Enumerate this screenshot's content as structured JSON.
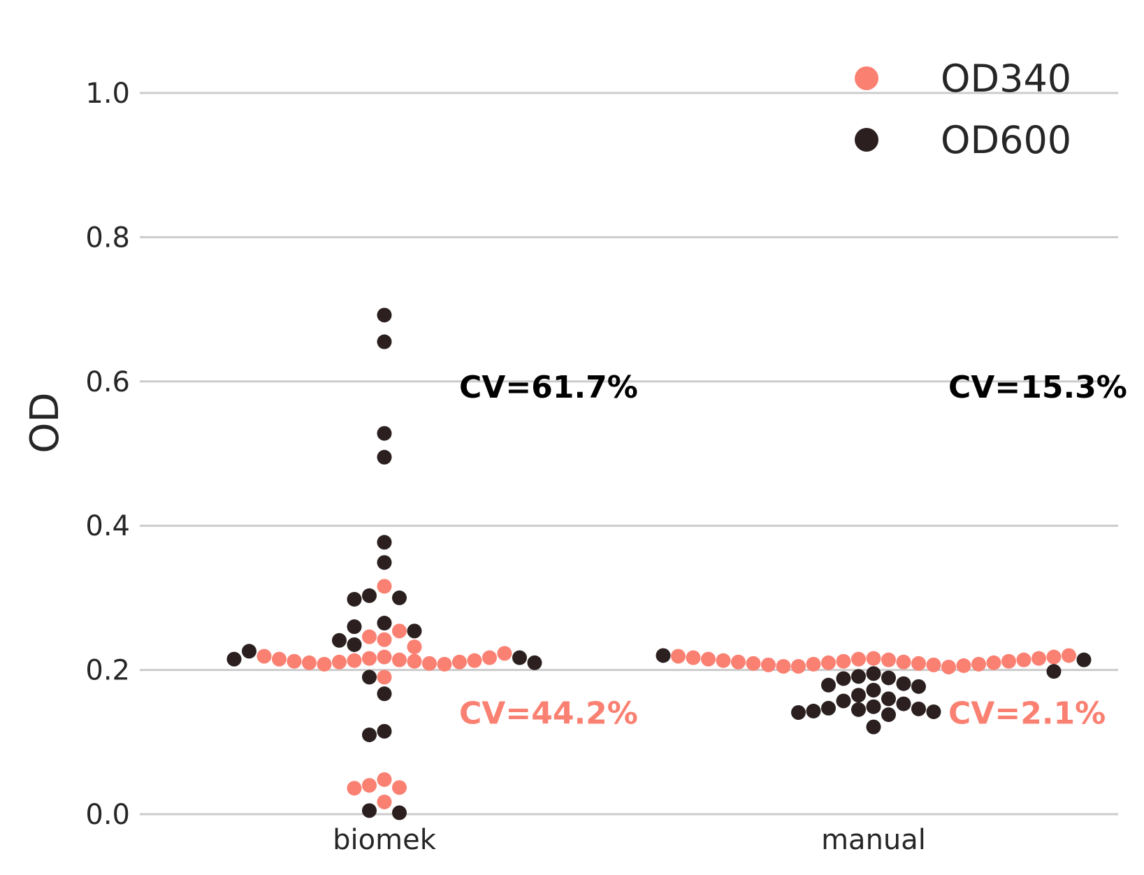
{
  "chart_data": {
    "type": "scatter",
    "subtype": "swarm",
    "title": "",
    "xlabel": "",
    "ylabel": "OD",
    "ylim": [
      0,
      1.0
    ],
    "yticks": [
      "0.0",
      "0.2",
      "0.4",
      "0.6",
      "0.8",
      "1.0"
    ],
    "categories": [
      "biomek",
      "manual"
    ],
    "grid": "horizontal",
    "legend_position": "top-right",
    "series": [
      {
        "name": "OD340",
        "color": "#fa8072",
        "points": {
          "biomek": [
            0.218,
            0.216,
            0.214,
            0.213,
            0.212,
            0.211,
            0.209,
            0.208,
            0.208,
            0.21,
            0.211,
            0.212,
            0.213,
            0.215,
            0.217,
            0.219,
            0.223,
            0.232,
            0.242,
            0.246,
            0.254,
            0.316,
            0.19,
            0.048,
            0.04,
            0.037,
            0.036,
            0.017
          ],
          "manual": [
            0.216,
            0.215,
            0.214,
            0.212,
            0.211,
            0.21,
            0.209,
            0.208,
            0.207,
            0.205,
            0.204,
            0.205,
            0.206,
            0.207,
            0.208,
            0.209,
            0.21,
            0.211,
            0.212,
            0.213,
            0.214,
            0.215,
            0.216,
            0.217,
            0.218,
            0.219,
            0.22
          ]
        }
      },
      {
        "name": "OD600",
        "color": "#2b1f1f",
        "points": {
          "biomek": [
            0.692,
            0.655,
            0.528,
            0.495,
            0.377,
            0.349,
            0.303,
            0.3,
            0.298,
            0.265,
            0.26,
            0.254,
            0.241,
            0.235,
            0.226,
            0.217,
            0.215,
            0.21,
            0.19,
            0.167,
            0.115,
            0.11,
            0.005,
            0.002
          ],
          "manual": [
            0.22,
            0.214,
            0.198,
            0.195,
            0.191,
            0.189,
            0.188,
            0.181,
            0.179,
            0.177,
            0.172,
            0.165,
            0.16,
            0.157,
            0.153,
            0.149,
            0.147,
            0.146,
            0.145,
            0.143,
            0.142,
            0.141,
            0.138,
            0.121
          ]
        }
      }
    ],
    "annotations": [
      {
        "text": "CV=61.7%",
        "category": "biomek",
        "y": 0.592,
        "color": "#000000"
      },
      {
        "text": "CV=44.2%",
        "category": "biomek",
        "y": 0.14,
        "color": "#fa8072"
      },
      {
        "text": "CV=15.3%",
        "category": "manual",
        "y": 0.592,
        "color": "#000000"
      },
      {
        "text": "CV=2.1%",
        "category": "manual",
        "y": 0.14,
        "color": "#fa8072"
      }
    ]
  }
}
